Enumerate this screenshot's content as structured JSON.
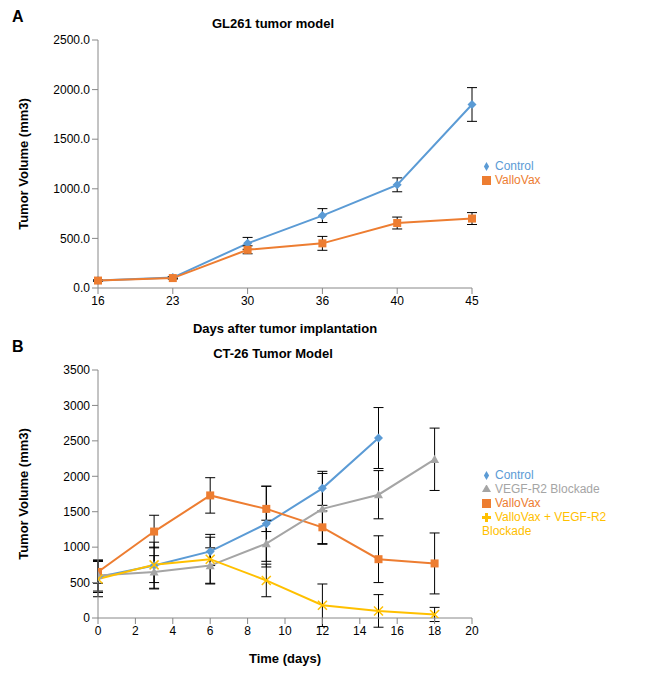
{
  "chart_data": [
    {
      "type": "line",
      "title": "GL261 tumor model",
      "annotations": [
        "A"
      ],
      "x_label": "Days after tumor implantation",
      "y_label": "Tumor Volume (mm3)",
      "categories": [
        "16",
        "23",
        "30",
        "36",
        "40",
        "45"
      ],
      "ylim": [
        0,
        2500
      ],
      "yticks": [
        {
          "value": 0,
          "label": "0.0"
        },
        {
          "value": 500,
          "label": "500.0"
        },
        {
          "value": 1000,
          "label": "1000.0"
        },
        {
          "value": 1500,
          "label": "1500.0"
        },
        {
          "value": 2000,
          "label": "2000.0"
        },
        {
          "value": 2500,
          "label": "2500.0"
        }
      ],
      "grid": false,
      "legend": "right",
      "series": [
        {
          "name": "Control",
          "color": "#5B9BD5",
          "marker": "diamond",
          "values": [
            75,
            105,
            450,
            730,
            1040,
            1850
          ],
          "errors": [
            5,
            10,
            60,
            70,
            70,
            170
          ]
        },
        {
          "name": "ValloVax",
          "color": "#ED7D31",
          "marker": "square",
          "values": [
            75,
            100,
            385,
            450,
            655,
            700
          ],
          "errors": [
            5,
            10,
            40,
            70,
            60,
            60
          ]
        }
      ]
    },
    {
      "type": "line",
      "title": "CT-26 Tumor Model",
      "annotations": [
        "B"
      ],
      "x_label": "Time (days)",
      "y_label": "Tumor Volume (mm3)",
      "x": [
        0,
        3,
        6,
        9,
        12,
        15,
        18
      ],
      "xlim": [
        0,
        20
      ],
      "xticks": [
        0,
        2,
        4,
        6,
        8,
        10,
        12,
        14,
        16,
        18,
        20
      ],
      "ylim": [
        0,
        3500
      ],
      "yticks": [
        0,
        500,
        1000,
        1500,
        2000,
        2500,
        3000,
        3500
      ],
      "grid": false,
      "legend": "right",
      "series": [
        {
          "name": "Control",
          "color": "#5B9BD5",
          "marker": "diamond",
          "values": [
            580,
            740,
            940,
            1330,
            1830,
            2540,
            null
          ],
          "errors": [
            220,
            330,
            200,
            530,
            240,
            430,
            null
          ]
        },
        {
          "name": "ValloVax",
          "color": "#ED7D31",
          "marker": "square",
          "values": [
            650,
            1220,
            1730,
            1540,
            1280,
            830,
            770
          ],
          "errors": [
            160,
            230,
            250,
            320,
            230,
            330,
            430
          ]
        },
        {
          "name": "VEGF-R2 Blockade",
          "color": "#A5A5A5",
          "marker": "triangle",
          "values": [
            600,
            650,
            740,
            1050,
            1540,
            1740,
            2240
          ],
          "errors": [
            220,
            230,
            250,
            330,
            500,
            340,
            440
          ]
        },
        {
          "name": "ValloVax + VEGF-R2 Blockade",
          "color": "#FFC000",
          "marker": "x",
          "values": [
            550,
            750,
            830,
            530,
            180,
            100,
            50
          ],
          "errors": [
            250,
            250,
            350,
            230,
            300,
            230,
            100
          ]
        }
      ]
    }
  ]
}
